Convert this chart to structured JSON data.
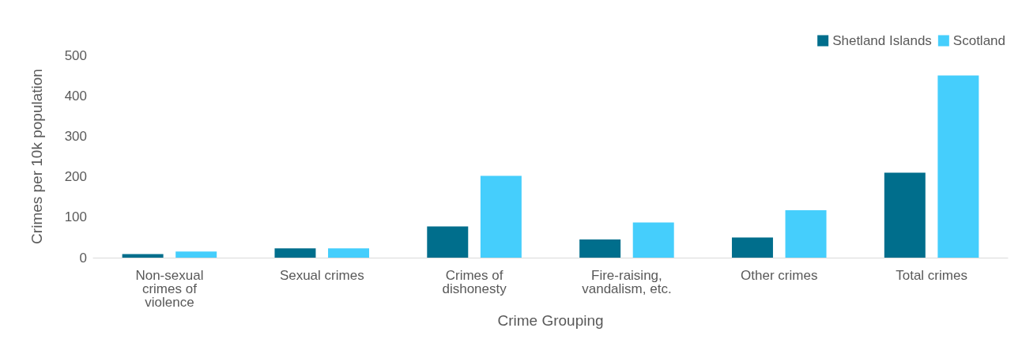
{
  "chart_data": {
    "type": "bar",
    "xlabel": "Crime Grouping",
    "ylabel": "Crimes per 10k population",
    "categories": [
      "Non-sexual crimes of violence",
      "Sexual crimes",
      "Crimes of dishonesty",
      "Fire-raising, vandalism, etc.",
      "Other crimes",
      "Total crimes"
    ],
    "series": [
      {
        "name": "Shetland Islands",
        "color": "#006e8c",
        "values": [
          9,
          23,
          77,
          45,
          50,
          210
        ]
      },
      {
        "name": "Scotland",
        "color": "#45cefc",
        "values": [
          15,
          23,
          202,
          87,
          117,
          450
        ]
      }
    ],
    "ylim": [
      0,
      500
    ],
    "yticks": [
      0,
      100,
      200,
      300,
      400,
      500
    ],
    "grid": false,
    "legend": "top right"
  }
}
